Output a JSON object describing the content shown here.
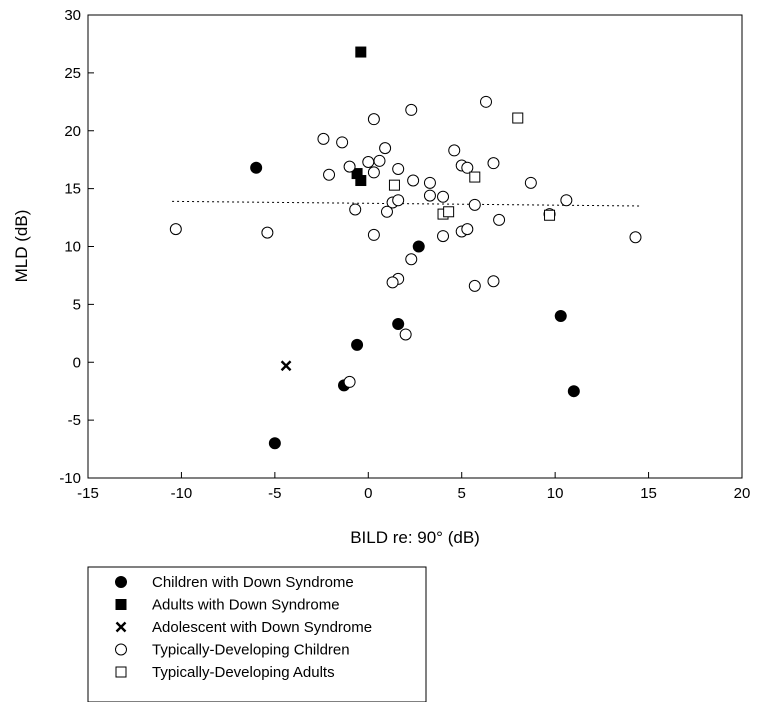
{
  "chart_data": {
    "type": "scatter",
    "xlabel": "BILD re: 90° (dB)",
    "ylabel": "MLD (dB)",
    "xlim": [
      -15,
      20
    ],
    "ylim": [
      -10,
      30
    ],
    "xticks": [
      "-15",
      "-10",
      "-5",
      "0",
      "5",
      "10",
      "15",
      "20"
    ],
    "yticks": [
      "-10",
      "-5",
      "0",
      "5",
      "10",
      "15",
      "20",
      "25",
      "30"
    ],
    "grid": false,
    "legend_position": "below",
    "trend_line": {
      "style": "dotted",
      "x": [
        -10.5,
        14.5
      ],
      "y": [
        13.9,
        13.5
      ]
    },
    "series": [
      {
        "name": "Children with Down Syndrome",
        "marker": "filled-circle",
        "points": [
          [
            -6.0,
            16.8
          ],
          [
            2.7,
            10.0
          ],
          [
            1.6,
            3.3
          ],
          [
            -0.6,
            1.5
          ],
          [
            -1.3,
            -2.0
          ],
          [
            -5.0,
            -7.0
          ],
          [
            10.3,
            4.0
          ],
          [
            11.0,
            -2.5
          ]
        ]
      },
      {
        "name": "Adults with Down Syndrome",
        "marker": "filled-square",
        "points": [
          [
            -0.4,
            26.8
          ],
          [
            -0.6,
            16.3
          ],
          [
            -0.4,
            15.7
          ]
        ]
      },
      {
        "name": "Adolescent with Down Syndrome",
        "marker": "x",
        "points": [
          [
            -4.4,
            -0.3
          ]
        ]
      },
      {
        "name": "Typically-Developing Children",
        "marker": "open-circle",
        "points": [
          [
            -10.3,
            11.5
          ],
          [
            -5.4,
            11.2
          ],
          [
            -2.4,
            19.3
          ],
          [
            -2.1,
            16.2
          ],
          [
            -1.4,
            19.0
          ],
          [
            -1.0,
            16.9
          ],
          [
            -0.7,
            13.2
          ],
          [
            0.3,
            21.0
          ],
          [
            0.9,
            18.5
          ],
          [
            0.6,
            17.4
          ],
          [
            0.3,
            16.4
          ],
          [
            0.0,
            17.3
          ],
          [
            1.6,
            16.7
          ],
          [
            2.3,
            21.8
          ],
          [
            1.3,
            13.8
          ],
          [
            1.6,
            14.0
          ],
          [
            1.0,
            13.0
          ],
          [
            0.3,
            11.0
          ],
          [
            2.4,
            15.7
          ],
          [
            3.3,
            15.5
          ],
          [
            3.3,
            14.4
          ],
          [
            4.0,
            14.3
          ],
          [
            4.6,
            18.3
          ],
          [
            5.0,
            17.0
          ],
          [
            5.3,
            16.8
          ],
          [
            4.0,
            10.9
          ],
          [
            5.0,
            11.3
          ],
          [
            5.3,
            11.5
          ],
          [
            2.3,
            8.9
          ],
          [
            1.6,
            7.2
          ],
          [
            1.3,
            6.9
          ],
          [
            2.0,
            2.4
          ],
          [
            -1.0,
            -1.7
          ],
          [
            5.7,
            6.6
          ],
          [
            6.7,
            7.0
          ],
          [
            6.3,
            22.5
          ],
          [
            6.7,
            17.2
          ],
          [
            7.0,
            12.3
          ],
          [
            8.7,
            15.5
          ],
          [
            5.7,
            13.6
          ],
          [
            9.7,
            12.8
          ],
          [
            10.6,
            14.0
          ],
          [
            14.3,
            10.8
          ]
        ]
      },
      {
        "name": "Typically-Developing Adults",
        "marker": "open-square",
        "points": [
          [
            1.4,
            15.3
          ],
          [
            5.7,
            16.0
          ],
          [
            8.0,
            21.1
          ],
          [
            4.0,
            12.8
          ],
          [
            4.3,
            13.0
          ],
          [
            9.7,
            12.7
          ]
        ]
      }
    ]
  }
}
